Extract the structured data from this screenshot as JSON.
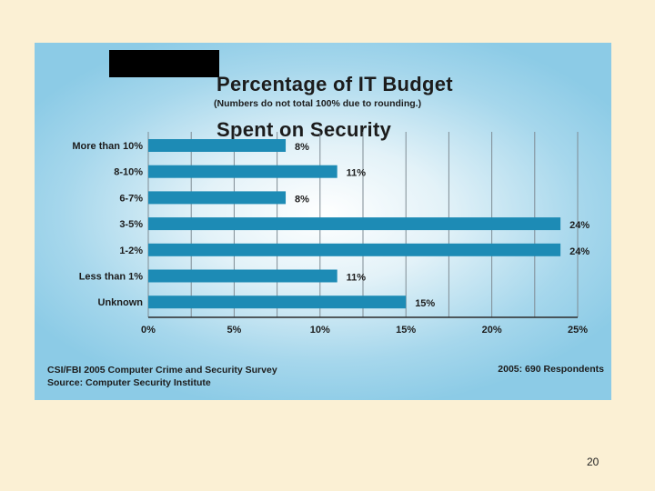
{
  "page_number": "20",
  "chart_data": {
    "type": "bar",
    "orientation": "horizontal",
    "title_lines": [
      "Percentage of IT Budget",
      "Spent on Security"
    ],
    "subtitle": "(Numbers do not total 100% due to rounding.)",
    "categories": [
      "More than 10%",
      "8-10%",
      "6-7%",
      "3-5%",
      "1-2%",
      "Less than 1%",
      "Unknown"
    ],
    "values": [
      8,
      11,
      8,
      24,
      24,
      11,
      15
    ],
    "value_labels": [
      "8%",
      "11%",
      "8%",
      "24%",
      "24%",
      "11%",
      "15%"
    ],
    "xlim": [
      0,
      25
    ],
    "xticks": [
      0,
      5,
      10,
      15,
      20,
      25
    ],
    "xtick_labels": [
      "0%",
      "5%",
      "10%",
      "15%",
      "20%",
      "25%"
    ],
    "grid": true,
    "bar_color": "#1d8bb5",
    "source_lines": [
      "CSI/FBI 2005 Computer Crime and Security Survey",
      "Source: Computer Security Institute"
    ],
    "respondents": "2005: 690 Respondents"
  }
}
